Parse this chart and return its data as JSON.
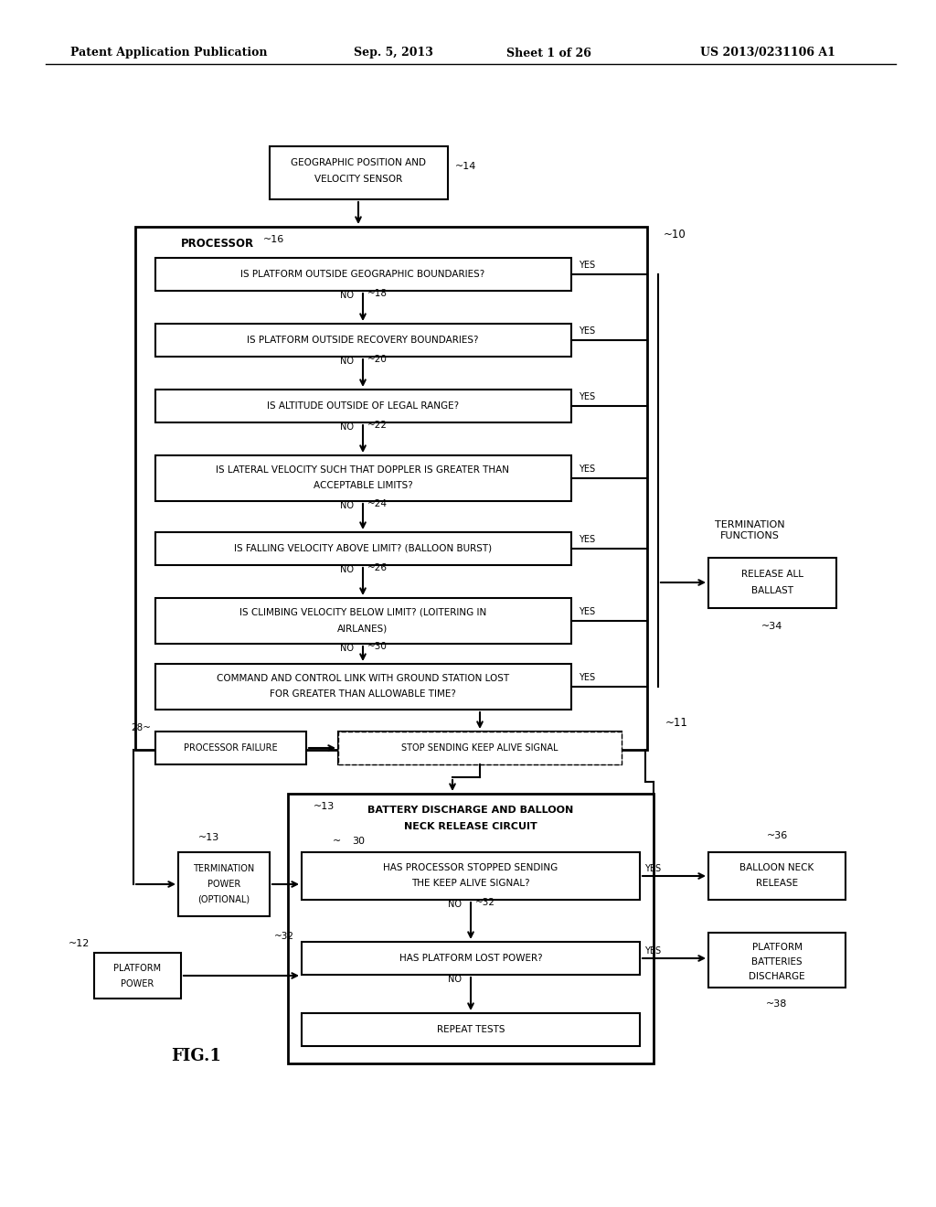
{
  "bg_color": "#ffffff",
  "header1": "Patent Application Publication",
  "header2": "Sep. 5, 2013",
  "header3": "Sheet 1 of 26",
  "header4": "US 2013/0231106 A1",
  "fig_label": "FIG.1"
}
